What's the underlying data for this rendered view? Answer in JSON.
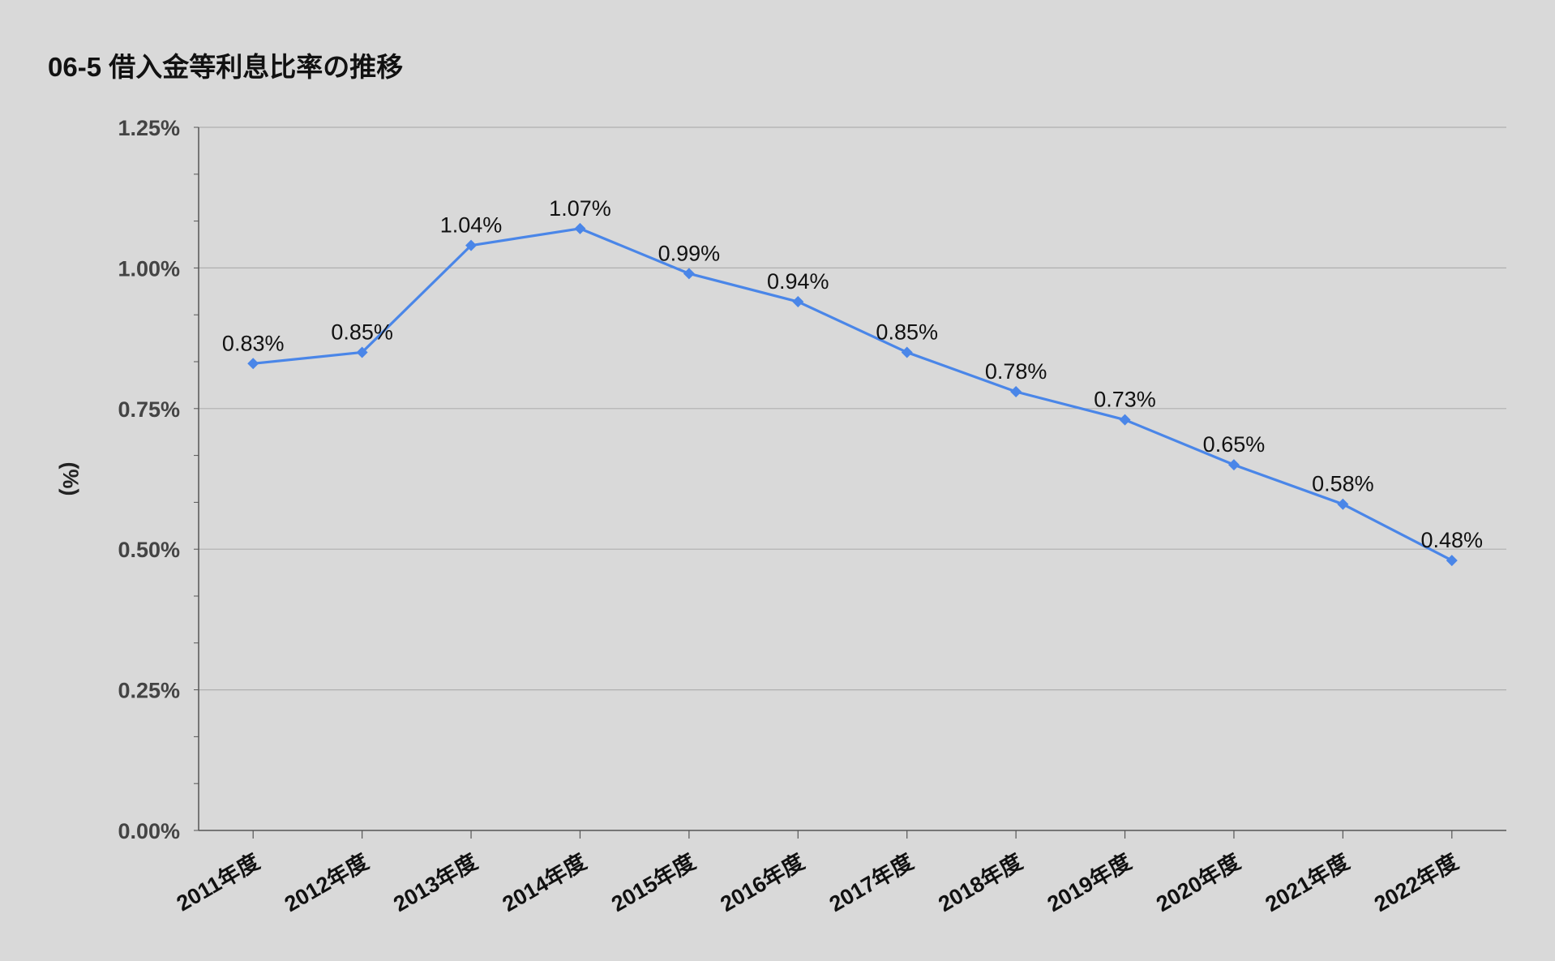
{
  "chart_data": {
    "type": "line",
    "title": "06-5 借入金等利息比率の推移",
    "ylabel": "(%)",
    "xlabel": "",
    "categories": [
      "2011年度",
      "2012年度",
      "2013年度",
      "2014年度",
      "2015年度",
      "2016年度",
      "2017年度",
      "2018年度",
      "2019年度",
      "2020年度",
      "2021年度",
      "2022年度"
    ],
    "series": [
      {
        "values": [
          0.83,
          0.85,
          1.04,
          1.07,
          0.99,
          0.94,
          0.85,
          0.78,
          0.73,
          0.65,
          0.58,
          0.48
        ],
        "labels": [
          "0.83%",
          "0.85%",
          "1.04%",
          "1.07%",
          "0.99%",
          "0.94%",
          "0.85%",
          "0.78%",
          "0.73%",
          "0.65%",
          "0.58%",
          "0.48%"
        ],
        "color": "#4a86e8",
        "marker": "diamond"
      }
    ],
    "ylim": [
      0,
      1.25
    ],
    "yticks": [
      0,
      0.25,
      0.5,
      0.75,
      1.0,
      1.25
    ],
    "ytick_labels": [
      "0.00%",
      "0.25%",
      "0.50%",
      "0.75%",
      "1.00%",
      "1.25%"
    ],
    "grid": true,
    "legend": "none",
    "colors": {
      "background": "#d9d9d9",
      "gridline": "#b0b0b0",
      "axis": "#555555"
    }
  }
}
